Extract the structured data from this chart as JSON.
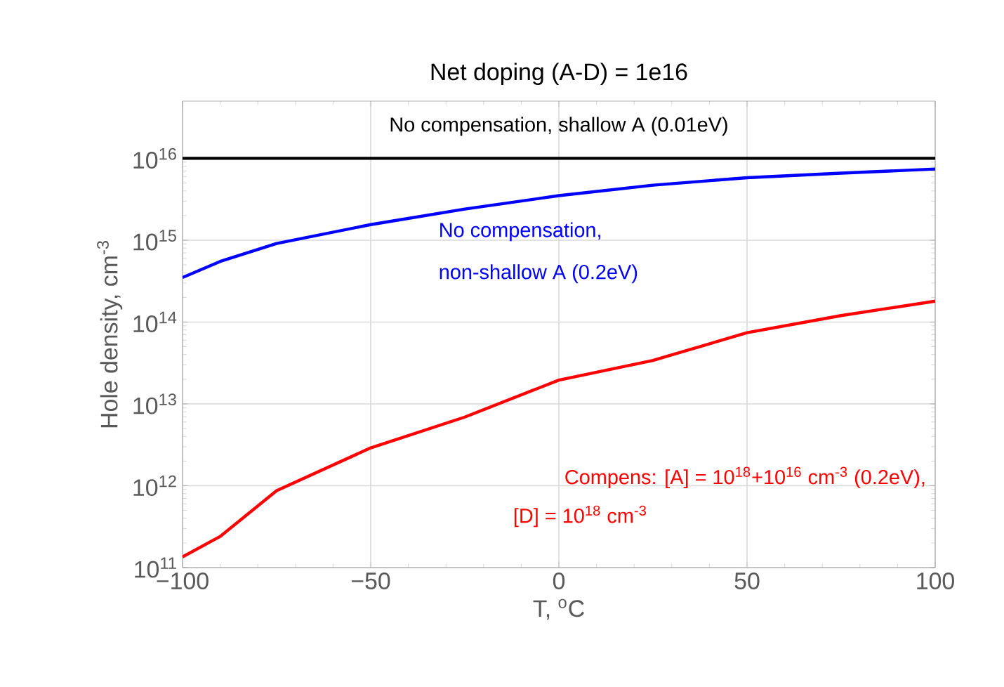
{
  "chart_data": {
    "type": "line",
    "title": "Net doping (A-D) = 1e16",
    "xlabel": "T, $^{o}$C",
    "ylabel": "Hole density, cm$^{-3}$",
    "x": [
      -100,
      -90,
      -75,
      -50,
      -25,
      0,
      25,
      50,
      75,
      100
    ],
    "series": [
      {
        "color": "#000000",
        "values": [
          1e+16,
          1e+16,
          1e+16,
          1e+16,
          1e+16,
          1e+16,
          1e+16,
          1e+16,
          1e+16,
          1e+16
        ]
      },
      {
        "color": "#0000ff",
        "values": [
          350000000000000.0,
          550000000000000.0,
          910000000000000.0,
          1550000000000000.0,
          2400000000000000.0,
          3500000000000000.0,
          4700000000000000.0,
          5800000000000000.0,
          6600000000000000.0,
          7400000000000000.0
        ]
      },
      {
        "color": "#ff0000",
        "values": [
          135000000000.0,
          240000000000.0,
          870000000000.0,
          2900000000000.0,
          6900000000000.0,
          19500000000000.0,
          34000000000000.0,
          74000000000000.0,
          120000000000000.0,
          180000000000000.0
        ]
      }
    ],
    "annotations": [
      "No compensation, shallow A (0.01eV)",
      "No compensation,",
      "non-shallow A (0.2eV)",
      "Compens: [A] = 10$^{18}$+10$^{16}$ cm$^{-3}$ (0.2eV),",
      "[D] = 10$^{18}$ cm$^{-3}$"
    ],
    "xlim": [
      -100,
      100
    ],
    "ylim": [
      100000000000.0,
      5e+16
    ],
    "xticks": [
      {
        "value": -100,
        "label": "−100"
      },
      {
        "value": -50,
        "label": "−50"
      },
      0,
      50,
      100
    ],
    "yticks": [
      {
        "value": 100000000000.0,
        "label": "10$^{11}$"
      },
      {
        "value": 1000000000000.0,
        "label": "10$^{12}$"
      },
      {
        "value": 10000000000000.0,
        "label": "10$^{13}$"
      },
      {
        "value": 100000000000000.0,
        "label": "10$^{14}$"
      },
      {
        "value": 1000000000000000.0,
        "label": "10$^{15}$"
      },
      {
        "value": 1e+16,
        "label": "10$^{16}$"
      }
    ],
    "log": "y",
    "grid": true,
    "marker": "none",
    "line_style": "solid"
  }
}
